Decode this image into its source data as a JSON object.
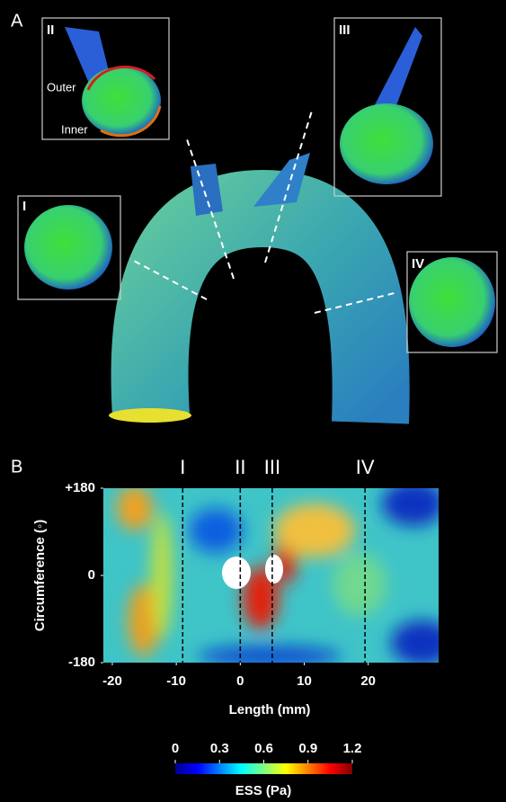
{
  "panel_a": {
    "label": "A",
    "insets": [
      {
        "label": "I"
      },
      {
        "label": "II",
        "annotations": [
          "Outer",
          "Inner"
        ]
      },
      {
        "label": "III"
      },
      {
        "label": "IV"
      }
    ]
  },
  "chart_data": {
    "type": "heatmap",
    "panel_label": "B",
    "x_label": "Length (mm)",
    "y_label": "Circumference (◦)",
    "xlim": [
      -21.4,
      31
    ],
    "xticks": [
      -20,
      -10,
      0,
      10,
      20
    ],
    "ylim": [
      -180,
      180
    ],
    "yticks": [
      {
        "value": 180,
        "label": "+180"
      },
      0,
      -180
    ],
    "sections": [
      {
        "label": "I",
        "x": -9
      },
      {
        "label": "II",
        "x": 0
      },
      {
        "label": "III",
        "x": 5
      },
      {
        "label": "IV",
        "x": 19.5
      }
    ],
    "colorbar": {
      "label": "ESS (Pa)",
      "lim": [
        0,
        1.2
      ],
      "ticks": [
        0,
        0.3,
        0.6,
        0.9,
        1.2
      ]
    }
  }
}
